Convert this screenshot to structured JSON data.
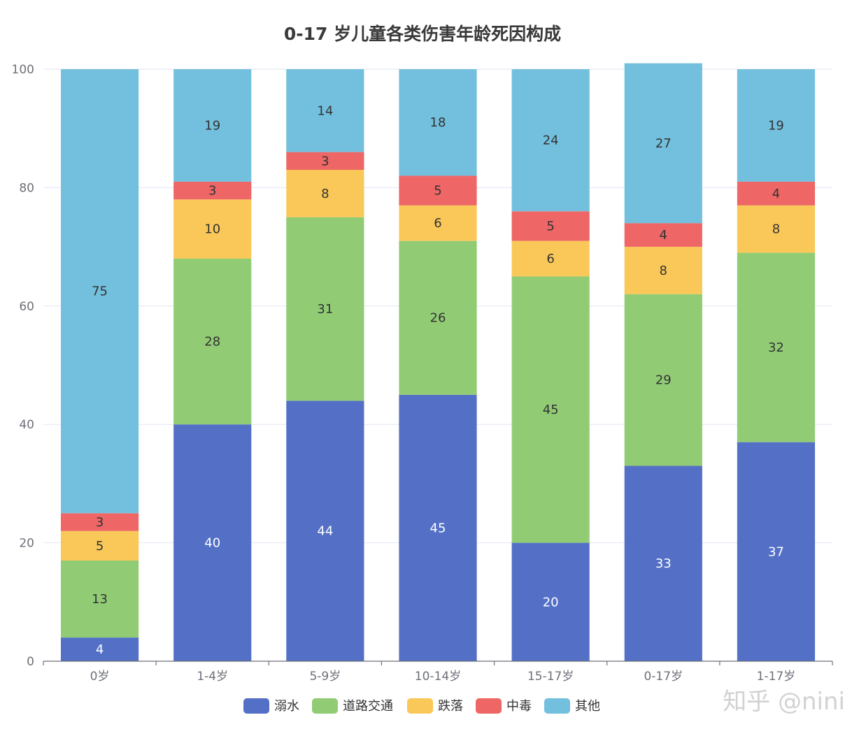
{
  "chart_data": {
    "type": "bar",
    "stacked": true,
    "title": "0-17 岁儿童各类伤害年龄死因构成",
    "categories": [
      "0岁",
      "1-4岁",
      "5-9岁",
      "10-14岁",
      "15-17岁",
      "0-17岁",
      "1-17岁"
    ],
    "ylim": [
      0,
      100
    ],
    "yticks": [
      0,
      20,
      40,
      60,
      80,
      100
    ],
    "grid": true,
    "legend_position": "bottom",
    "series": [
      {
        "name": "溺水",
        "color": "#5470c6",
        "label_color": "#ffffff",
        "values": [
          4,
          40,
          44,
          45,
          20,
          33,
          37
        ]
      },
      {
        "name": "道路交通",
        "color": "#91cc75",
        "label_color": "#333333",
        "values": [
          13,
          28,
          31,
          26,
          45,
          29,
          32
        ]
      },
      {
        "name": "跌落",
        "color": "#fac858",
        "label_color": "#333333",
        "values": [
          5,
          10,
          8,
          6,
          6,
          8,
          8
        ]
      },
      {
        "name": "中毒",
        "color": "#ee6666",
        "label_color": "#333333",
        "values": [
          3,
          3,
          3,
          5,
          5,
          4,
          4
        ]
      },
      {
        "name": "其他",
        "color": "#73c0de",
        "label_color": "#333333",
        "values": [
          75,
          19,
          14,
          18,
          24,
          27,
          19
        ]
      }
    ]
  },
  "watermark": "知乎 @nini"
}
